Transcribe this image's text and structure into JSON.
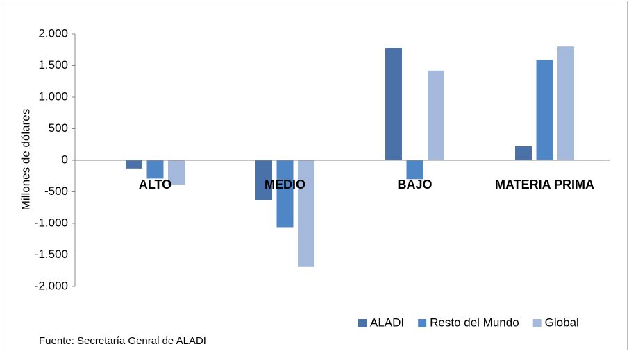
{
  "chart_data": {
    "type": "bar",
    "y_label": "Millones de dólares",
    "source": "Fuente: Secretaría Genral de ALADI",
    "categories": [
      "ALTO",
      "MEDIO",
      "BAJO",
      "MATERIA PRIMA"
    ],
    "series": [
      {
        "name": "ALADI",
        "color": "#4a72a8",
        "values": [
          -130,
          -630,
          1780,
          220
        ]
      },
      {
        "name": "Resto del Mundo",
        "color": "#4f86c6",
        "values": [
          -290,
          -1060,
          -300,
          1590
        ]
      },
      {
        "name": "Global",
        "color": "#a5b9dc",
        "values": [
          -390,
          -1690,
          1420,
          1800
        ]
      }
    ],
    "ylim": [
      -2000,
      2000
    ],
    "yticks": [
      {
        "value": -2000,
        "label": "-2.000"
      },
      {
        "value": -1500,
        "label": "-1.500"
      },
      {
        "value": -1000,
        "label": "-1.000"
      },
      -500,
      0,
      500,
      {
        "value": 1000,
        "label": "1.000"
      },
      {
        "value": 1500,
        "label": "1.500"
      },
      {
        "value": 2000,
        "label": "2.000"
      }
    ],
    "grid": false,
    "legend": "bottom-right"
  }
}
